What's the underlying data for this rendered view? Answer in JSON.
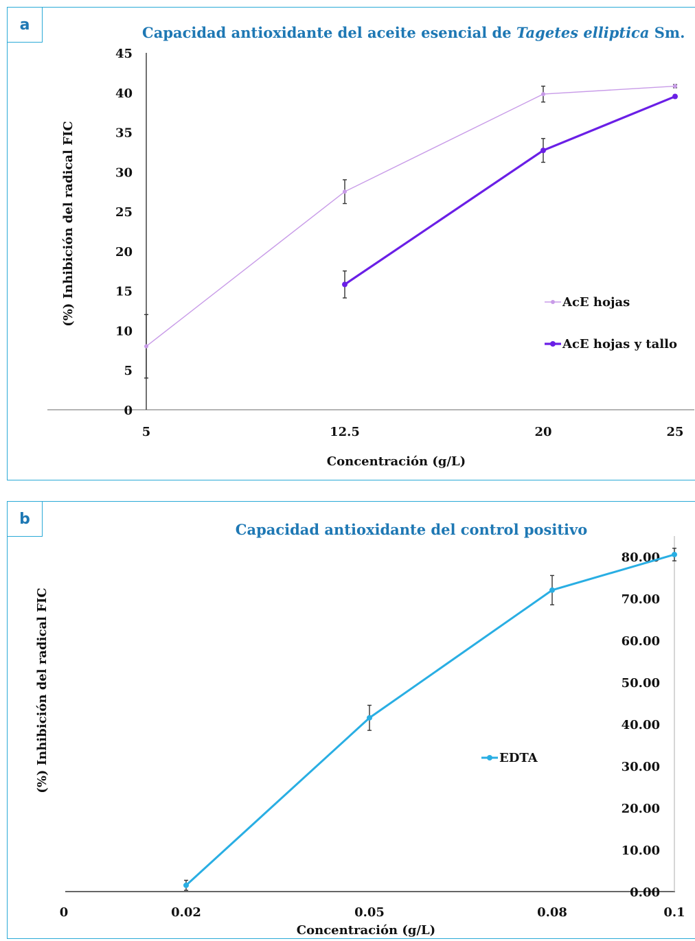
{
  "chart_data": [
    {
      "panel_label": "a",
      "type": "line",
      "title_main": "Capacidad antioxidante del aceite esencial de ",
      "title_italic": "Tagetes elliptica",
      "title_suffix": " Sm.",
      "xlabel": "Concentración (g/L)",
      "ylabel": "(%) Inhibición del radical FIC",
      "categories": [
        "5",
        "12.5",
        "20",
        "25"
      ],
      "ylim": [
        0,
        45
      ],
      "yticks": [
        "0",
        "5",
        "10",
        "15",
        "20",
        "25",
        "30",
        "35",
        "40",
        "45"
      ],
      "legend_position": "right",
      "series": [
        {
          "name": "AcE hojas",
          "color": "#c89be8",
          "values": [
            8,
            27.5,
            39.8,
            40.8
          ],
          "errors": [
            4,
            1.5,
            1.0,
            0.2
          ]
        },
        {
          "name": "AcE hojas y tallo",
          "color": "#6a1fe6",
          "values": [
            null,
            15.8,
            32.7,
            39.5
          ],
          "errors": [
            null,
            1.7,
            1.5,
            0.2
          ]
        }
      ]
    },
    {
      "panel_label": "b",
      "type": "line",
      "title": "Capacidad antioxidante del control positivo",
      "xlabel": "Concentración (g/L)",
      "ylabel": "(%) Inhibición del radical FIC",
      "categories": [
        "0",
        "0.02",
        "0.05",
        "0.08",
        "0.1"
      ],
      "ylim": [
        0,
        80
      ],
      "yticks": [
        "0.00",
        "10.00",
        "20.00",
        "30.00",
        "40.00",
        "50.00",
        "60.00",
        "70.00",
        "80.00"
      ],
      "legend_position": "center-right",
      "series": [
        {
          "name": "EDTA",
          "color": "#29aee3",
          "values": [
            null,
            1.5,
            41.5,
            72,
            80.5
          ],
          "errors": [
            null,
            1.2,
            3.0,
            3.5,
            1.5
          ]
        }
      ]
    }
  ]
}
